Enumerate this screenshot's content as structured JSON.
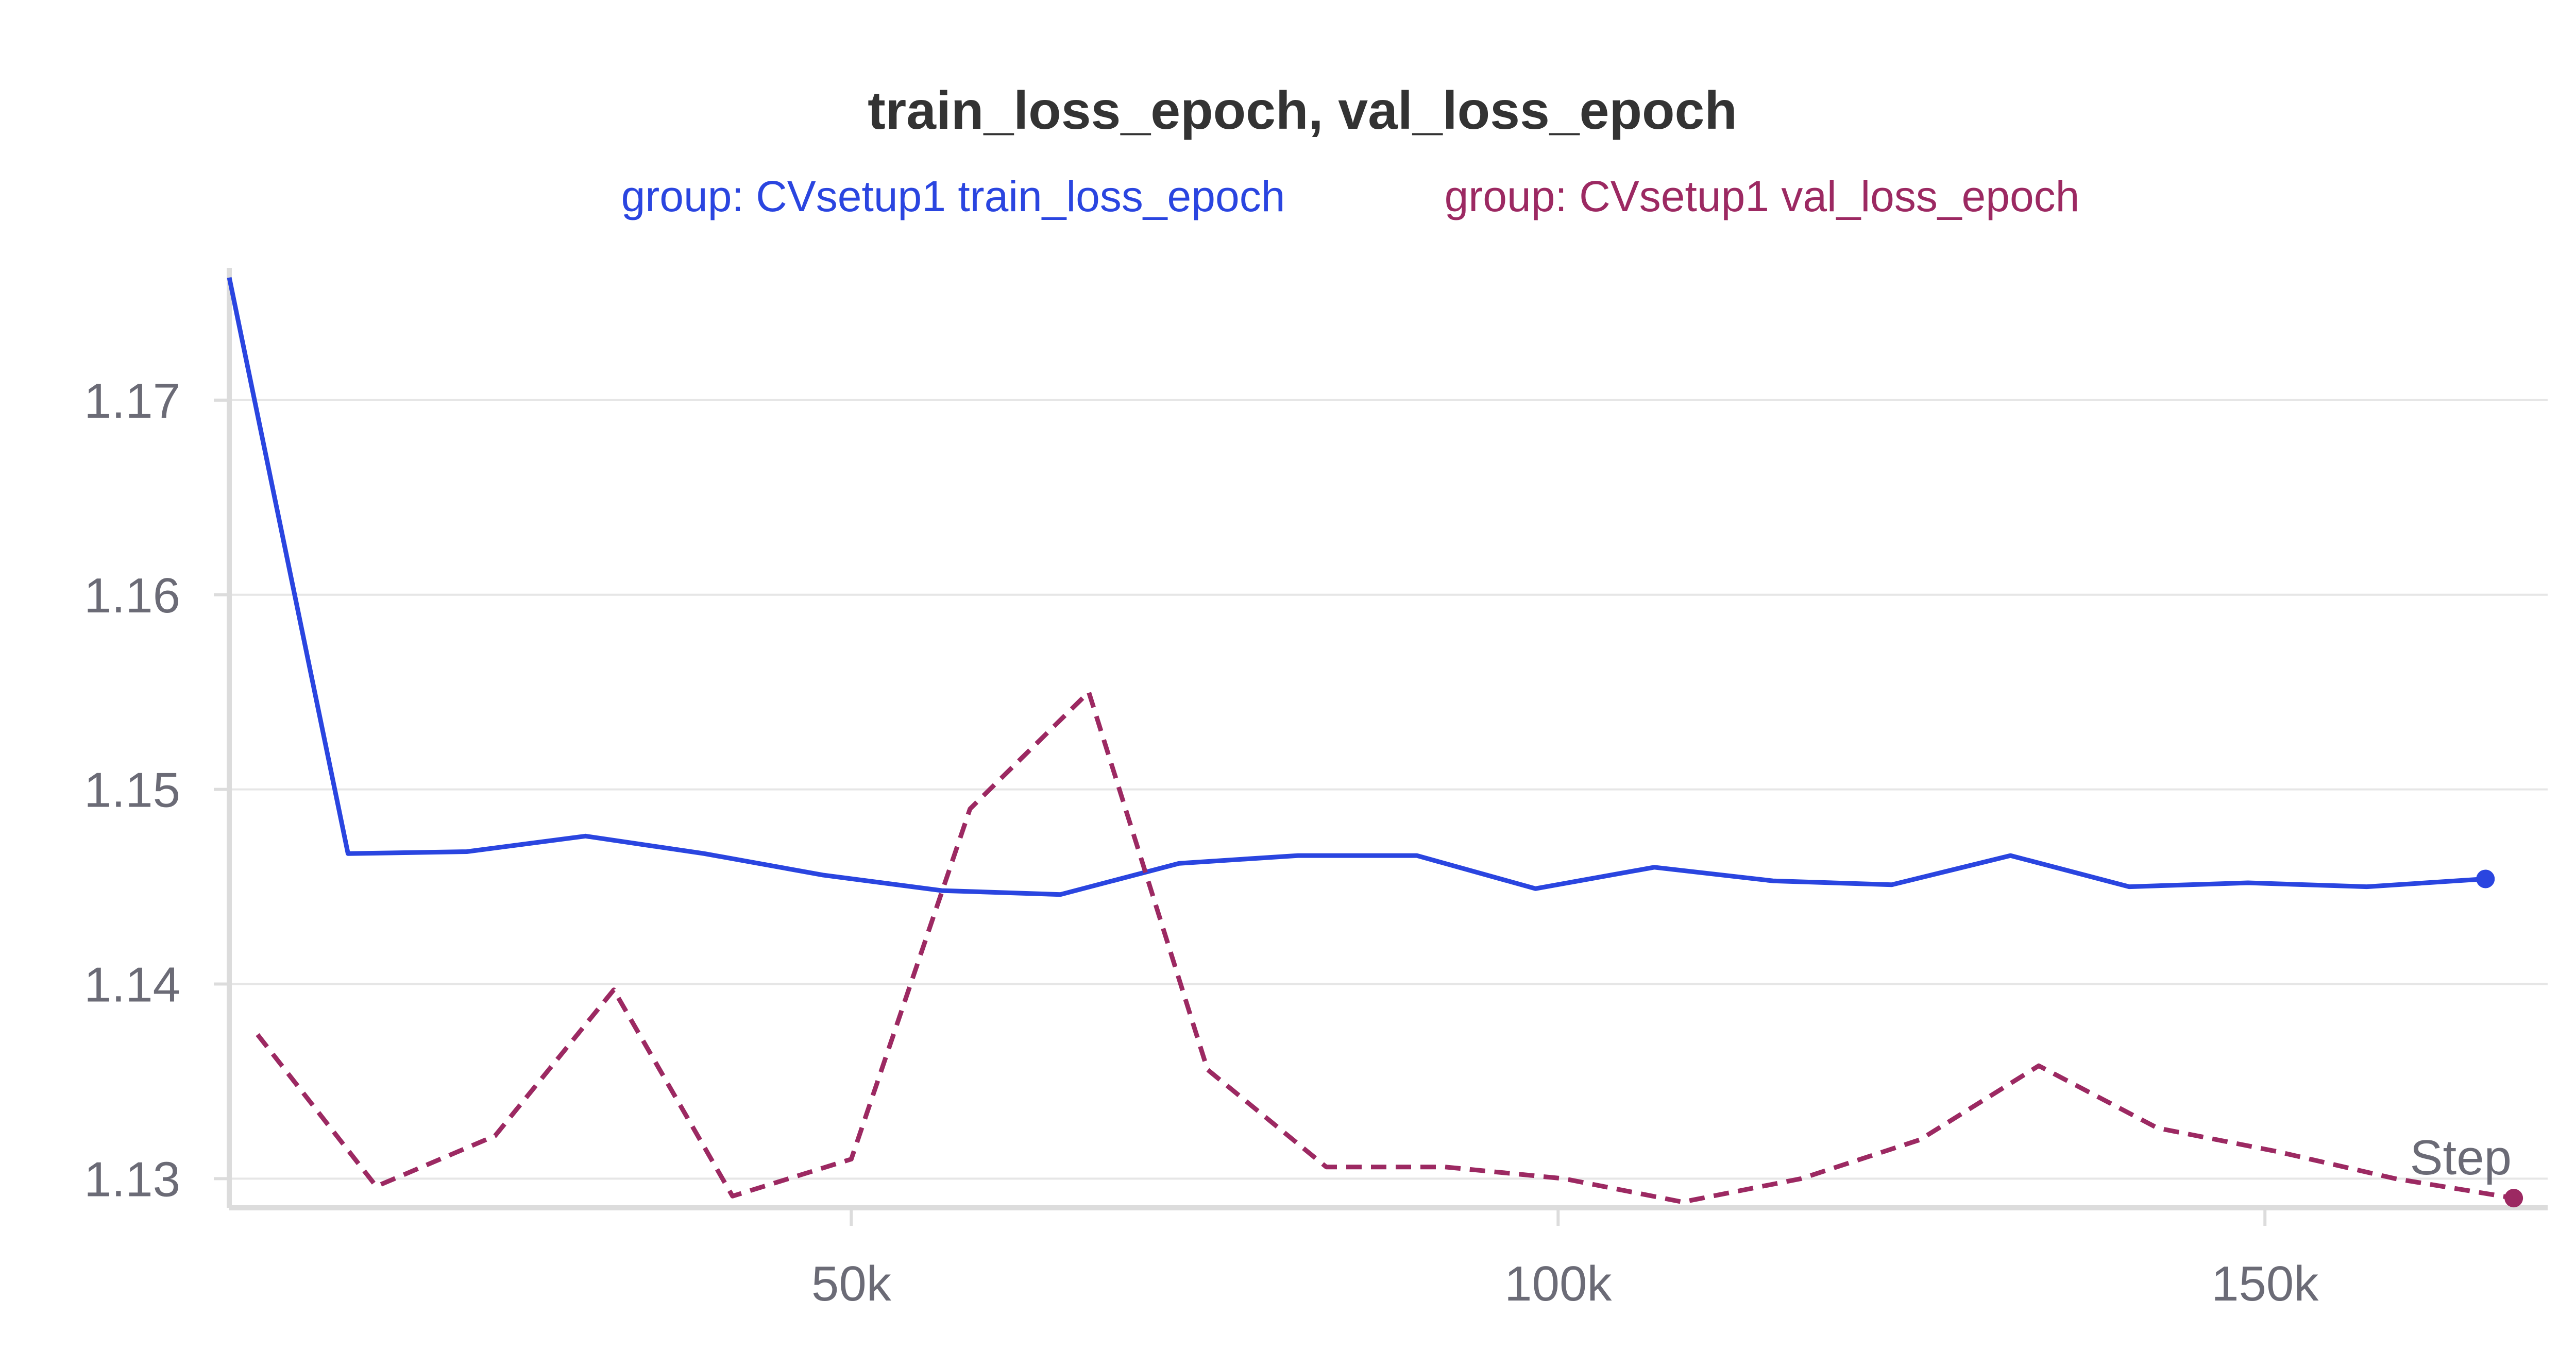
{
  "chart_data": {
    "type": "line",
    "title": "train_loss_epoch, val_loss_epoch",
    "xlabel": "Step",
    "ylabel": "",
    "xlim": [
      6000,
      170000
    ],
    "ylim": [
      1.1285,
      1.1768
    ],
    "x_ticks": [
      50000,
      100000,
      150000
    ],
    "x_tick_labels": [
      "50k",
      "100k",
      "150k"
    ],
    "y_ticks": [
      1.13,
      1.14,
      1.15,
      1.16,
      1.17
    ],
    "y_tick_labels": [
      "1.13",
      "1.14",
      "1.15",
      "1.16",
      "1.17"
    ],
    "grid": true,
    "legend_position": "top",
    "series": [
      {
        "name": "group: CVsetup1 train_loss_epoch",
        "color": "#2a45e0",
        "dash": "solid",
        "x": [
          6000,
          14400,
          22800,
          31200,
          39600,
          48000,
          56400,
          64800,
          73200,
          81600,
          90000,
          98400,
          106800,
          115200,
          123600,
          132000,
          140400,
          148800,
          157200,
          165600
        ],
        "y": [
          1.1763,
          1.1467,
          1.1468,
          1.1476,
          1.1467,
          1.1456,
          1.1448,
          1.1446,
          1.1462,
          1.1466,
          1.1466,
          1.1449,
          1.146,
          1.1453,
          1.1451,
          1.1466,
          1.145,
          1.1452,
          1.145,
          1.1454
        ]
      },
      {
        "name": "group: CVsetup1 val_loss_epoch",
        "color": "#9c2962",
        "dash": "dashed",
        "x": [
          8000,
          16400,
          24800,
          33200,
          41600,
          50000,
          58400,
          66800,
          75200,
          83600,
          92000,
          100400,
          108800,
          117200,
          125600,
          134000,
          142400,
          150800,
          159200,
          167600
        ],
        "y": [
          1.1374,
          1.1296,
          1.1322,
          1.1397,
          1.1291,
          1.131,
          1.149,
          1.155,
          1.1356,
          1.1306,
          1.1306,
          1.13,
          1.1288,
          1.13,
          1.132,
          1.1358,
          1.1326,
          1.1314,
          1.13,
          1.129
        ]
      }
    ]
  }
}
